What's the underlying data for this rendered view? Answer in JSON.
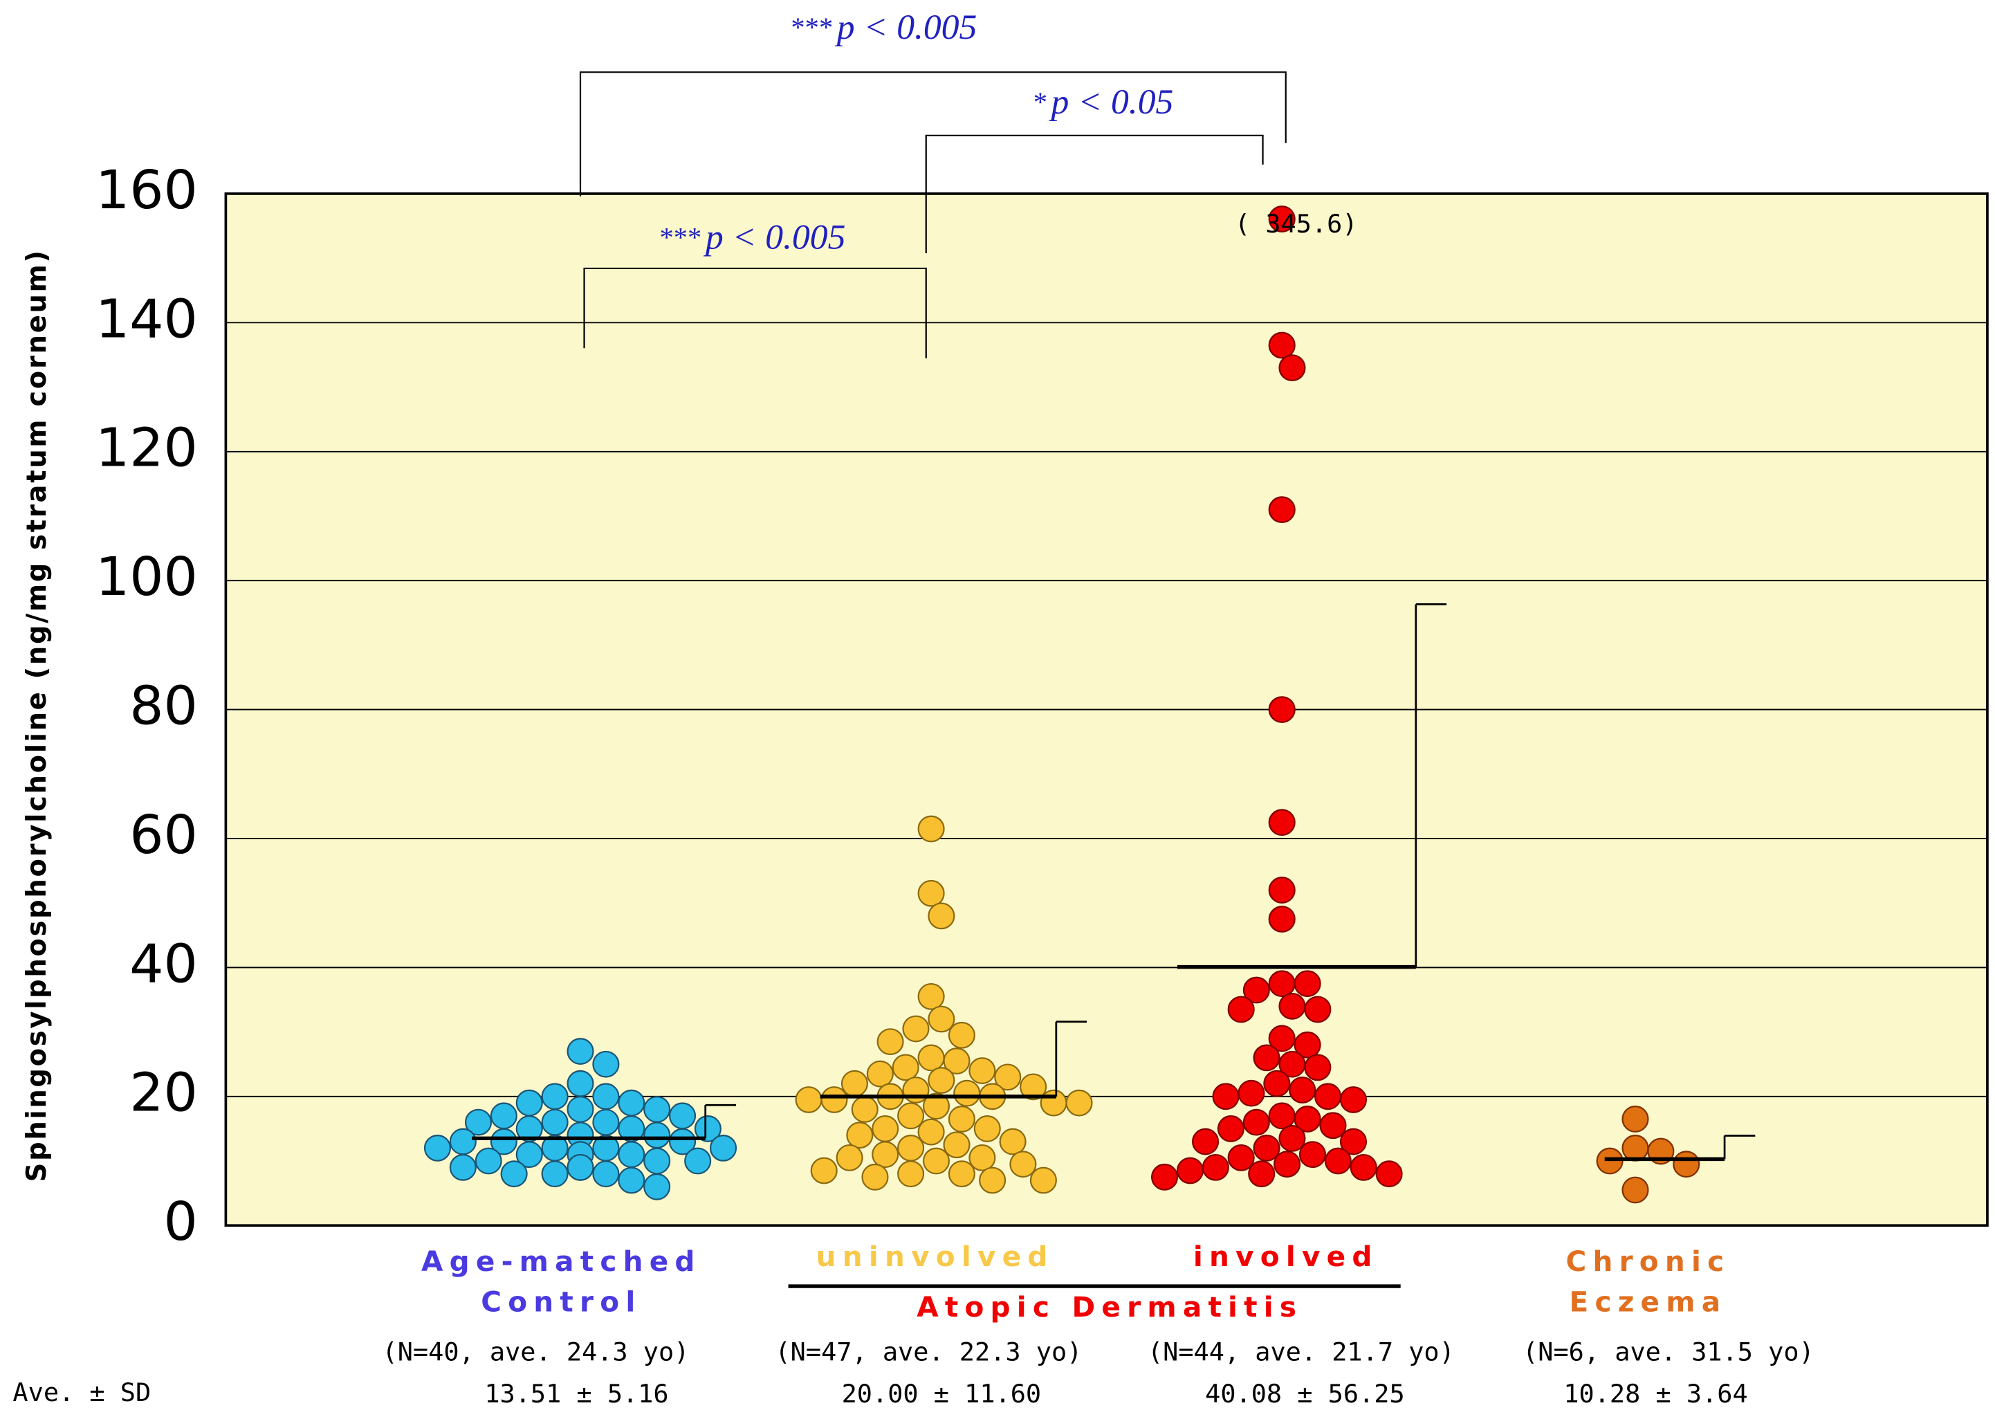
{
  "chart_data": {
    "type": "strip",
    "y_label": "Sphingosylphosphorylcholine (ng/mg stratum corneum)",
    "ylim": [
      0,
      160
    ],
    "yticks": [
      0,
      20,
      40,
      60,
      80,
      100,
      120,
      140,
      160
    ],
    "grid": true,
    "stat_heading": "Ave. ± SD",
    "span_label": "Atopic Dermatitis",
    "groups": [
      {
        "label": [
          "Age-matched",
          "Control"
        ],
        "color": "#2bbbe8",
        "n_label": "(N=40, ave. 24.3 yo)",
        "mean": 13.51,
        "sd": 5.16,
        "stat_label": "13.51 ± 5.16",
        "values": [
          27,
          25,
          22,
          20,
          20,
          19,
          19,
          18,
          18,
          17,
          17,
          16,
          16,
          16,
          15,
          15,
          15,
          14,
          14,
          13,
          13,
          13,
          12,
          12,
          12,
          12,
          11,
          11,
          11,
          10,
          10,
          10,
          9,
          9,
          9,
          8,
          8,
          8,
          7,
          6
        ]
      },
      {
        "label": [
          "uninvolved"
        ],
        "color": "#f8c030",
        "n_label": "(N=47, ave. 22.3 yo)",
        "mean": 20.0,
        "sd": 11.6,
        "stat_label": "20.00 ± 11.60",
        "values": [
          61.5,
          51.5,
          48,
          35.5,
          32,
          30.5,
          29.5,
          28.5,
          26,
          25.5,
          24.5,
          24,
          23.5,
          23,
          22.5,
          22,
          21.5,
          21,
          20.5,
          20,
          20,
          19.5,
          19.5,
          19,
          19,
          18.5,
          18,
          17,
          16.5,
          15,
          15,
          14.5,
          14,
          13,
          12.5,
          12,
          11,
          10.5,
          10.5,
          10,
          9.5,
          8.5,
          8,
          8,
          7.5,
          7,
          7
        ]
      },
      {
        "label": [
          "involved"
        ],
        "color": "#f00000",
        "n_label": "(N=44, ave. 21.7 yo)",
        "mean": 40.08,
        "sd": 56.25,
        "stat_label": "40.08 ± 56.25",
        "outlier": 345.6,
        "outlier_label": "( 345.6)",
        "values": [
          136.5,
          133,
          111,
          80,
          62.5,
          52,
          47.5,
          37.5,
          37.5,
          36.5,
          34,
          33.5,
          33.5,
          29,
          28,
          26,
          25,
          24.5,
          22,
          21,
          20.5,
          20,
          20,
          19.5,
          17,
          16.5,
          16,
          15.5,
          15,
          13.5,
          13,
          13,
          12,
          11,
          10.5,
          10,
          9.5,
          9,
          9,
          8.5,
          8,
          8,
          7.5
        ]
      },
      {
        "label": [
          "Chronic",
          "Eczema"
        ],
        "color": "#e07010",
        "n_label": "(N=6, ave. 31.5 yo)",
        "mean": 10.28,
        "sd": 3.64,
        "stat_label": "10.28 ± 3.64",
        "values": [
          16.5,
          12,
          11.5,
          10,
          9.5,
          5.5
        ]
      }
    ],
    "comparisons": [
      {
        "stars": "***",
        "text": "p < 0.005"
      },
      {
        "stars": "*",
        "text": "p < 0.05"
      },
      {
        "stars": "***",
        "text": "p < 0.005"
      }
    ]
  }
}
